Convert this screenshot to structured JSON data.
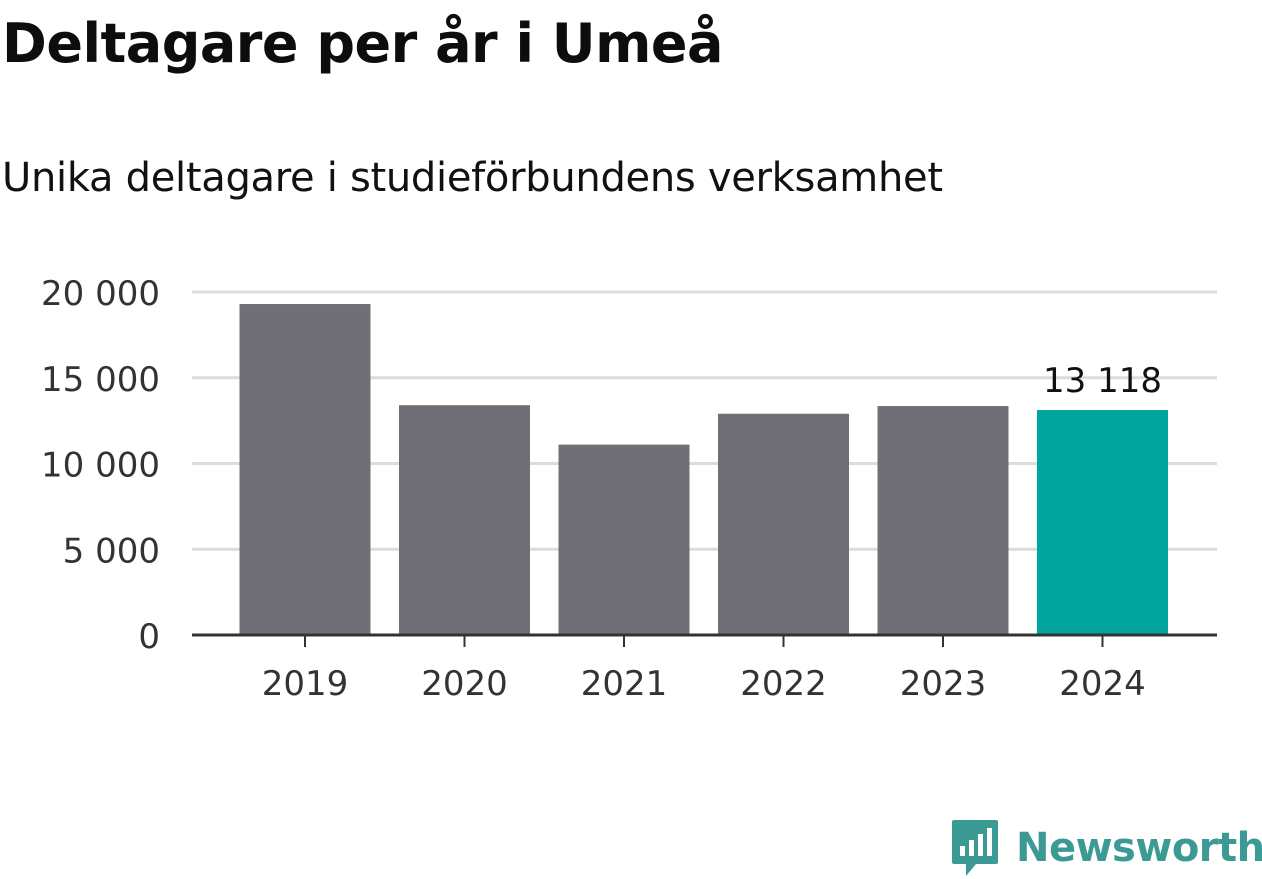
{
  "header": {
    "title": "Deltagare per år i Umeå",
    "subtitle": "Unika deltagare i studieförbundens verksamhet"
  },
  "chart_data": {
    "type": "bar",
    "categories": [
      "2019",
      "2020",
      "2021",
      "2022",
      "2023",
      "2024"
    ],
    "values": [
      19300,
      13400,
      11100,
      12900,
      13350,
      13118
    ],
    "ylim": [
      0,
      20000
    ],
    "yticks": [
      0,
      5000,
      10000,
      15000,
      20000
    ],
    "ytick_labels": [
      "0",
      "5 000",
      "10 000",
      "15 000",
      "20 000"
    ],
    "data_labels": [
      {
        "category": "2024",
        "text": "13 118"
      }
    ],
    "highlight_category": "2024",
    "grid": true,
    "colors": {
      "bar": "#706f75",
      "highlight": "#00a59b",
      "grid": "#dcdcdc",
      "axis": "#333333",
      "tick_text": "#333333"
    }
  },
  "brand": {
    "name": "Newsworthy",
    "icon": "newsworthy-logo-icon",
    "color": "#3b9a94"
  }
}
